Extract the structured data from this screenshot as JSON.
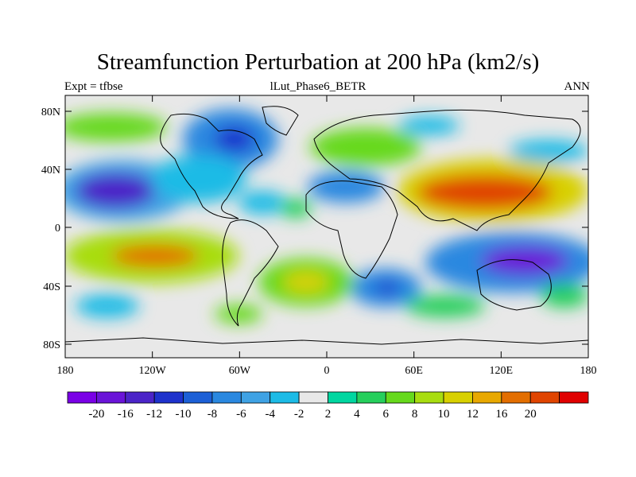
{
  "title": "Streamfunction Perturbation at 200 hPa (km2/s)",
  "left_label": "Expt = tfbse",
  "center_label": "lLut_Phase6_BETR",
  "right_label": "ANN",
  "y_ticks": [
    "80N",
    "40N",
    "0",
    "40S",
    "80S"
  ],
  "x_ticks": [
    "180",
    "120W",
    "60W",
    "0",
    "60E",
    "120E",
    "180"
  ],
  "colorbar": {
    "colors": [
      "#7a00e6",
      "#6a14d8",
      "#4b24c8",
      "#1e32cc",
      "#1c5fd6",
      "#2a88e0",
      "#3fa2e4",
      "#1cbbe6",
      "#e8e8e8",
      "#00d6a0",
      "#26cf5c",
      "#66d91c",
      "#a8dd10",
      "#d8d000",
      "#e8a800",
      "#e36e00",
      "#e04400",
      "#e00000"
    ],
    "labels": [
      "-20",
      "-16",
      "-12",
      "-10",
      "-8",
      "-6",
      "-4",
      "-2",
      "2",
      "4",
      "6",
      "8",
      "10",
      "12",
      "16",
      "20"
    ]
  },
  "chart_data": {
    "type": "heatmap",
    "title": "Streamfunction Perturbation at 200 hPa (km2/s)",
    "x_range": [
      -180,
      180
    ],
    "y_range": [
      -90,
      90
    ],
    "contour_levels": [
      -20,
      -16,
      -12,
      -10,
      -8,
      -6,
      -4,
      -2,
      2,
      4,
      6,
      8,
      10,
      12,
      16,
      20
    ],
    "features": [
      {
        "lon": -140,
        "lat": 25,
        "value": -16
      },
      {
        "lon": -65,
        "lat": 60,
        "value": -10
      },
      {
        "lon": -45,
        "lat": 15,
        "value": -4
      },
      {
        "lon": 135,
        "lat": -25,
        "value": -18
      },
      {
        "lon": 45,
        "lat": -42,
        "value": -12
      },
      {
        "lon": 12,
        "lat": 27,
        "value": -6
      },
      {
        "lon": 100,
        "lat": 72,
        "value": -4
      },
      {
        "lon": 160,
        "lat": 55,
        "value": -3
      },
      {
        "lon": -110,
        "lat": -20,
        "value": 14
      },
      {
        "lon": -10,
        "lat": -38,
        "value": 8
      },
      {
        "lon": 130,
        "lat": 25,
        "value": 14
      },
      {
        "lon": 40,
        "lat": 60,
        "value": 5
      },
      {
        "lon": -160,
        "lat": 70,
        "value": 6
      },
      {
        "lon": -70,
        "lat": -58,
        "value": 4
      },
      {
        "lon": 85,
        "lat": -42,
        "value": 4
      },
      {
        "lon": 160,
        "lat": -45,
        "value": 6
      }
    ]
  }
}
